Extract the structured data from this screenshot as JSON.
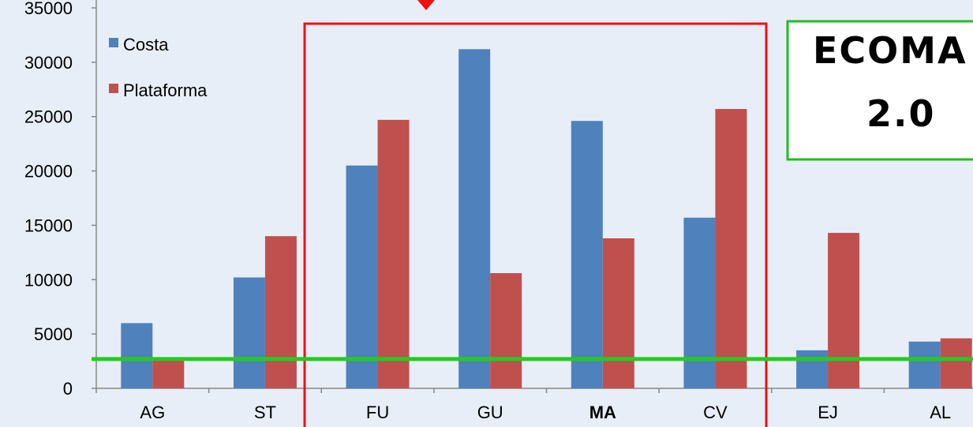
{
  "chart_data": {
    "type": "bar",
    "categories": [
      "AG",
      "ST",
      "FU",
      "GU",
      "MA",
      "CV",
      "EJ",
      "AL"
    ],
    "series": [
      {
        "name": "Costa",
        "color": "#4f81bd",
        "values": [
          6000,
          10200,
          20500,
          31200,
          24600,
          15700,
          3500,
          4300
        ]
      },
      {
        "name": "Plataforma",
        "color": "#c0504d",
        "values": [
          2800,
          14000,
          24700,
          10600,
          13800,
          25700,
          14300,
          4600
        ]
      }
    ],
    "ylim": [
      0,
      35000
    ],
    "yticks": [
      0,
      5000,
      10000,
      15000,
      20000,
      25000,
      30000,
      35000
    ],
    "highlight_category": "MA",
    "highlight_color": "#22bb22",
    "reference_line": {
      "value": 2700,
      "color": "#22cc22"
    },
    "highlight_box_color": "#ee1111",
    "grid": false
  },
  "callout": {
    "line1": "ECOMA",
    "line2": "2.0",
    "border_color": "#22bb22"
  }
}
